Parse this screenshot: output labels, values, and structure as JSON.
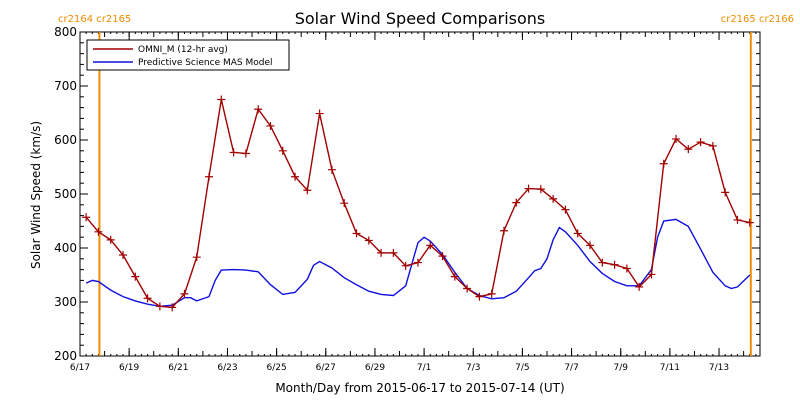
{
  "chart_data": {
    "type": "line",
    "title": "Solar Wind Speed Comparisons",
    "xlabel": "Month/Day from 2015-06-17 to 2015-07-14 (UT)",
    "ylabel": "Solar Wind Speed (km/s)",
    "ylim": [
      200,
      800
    ],
    "xlim": [
      "2015-06-17",
      "2015-07-14"
    ],
    "y_ticks": [
      200,
      300,
      400,
      500,
      600,
      700,
      800
    ],
    "x_ticks": [
      {
        "date": "2015-06-17",
        "label": "6/17"
      },
      {
        "date": "2015-06-19",
        "label": "6/19"
      },
      {
        "date": "2015-06-21",
        "label": "6/21"
      },
      {
        "date": "2015-06-23",
        "label": "6/23"
      },
      {
        "date": "2015-06-25",
        "label": "6/25"
      },
      {
        "date": "2015-06-27",
        "label": "6/27"
      },
      {
        "date": "2015-06-29",
        "label": "6/29"
      },
      {
        "date": "2015-07-01",
        "label": "7/1"
      },
      {
        "date": "2015-07-03",
        "label": "7/3"
      },
      {
        "date": "2015-07-05",
        "label": "7/5"
      },
      {
        "date": "2015-07-07",
        "label": "7/7"
      },
      {
        "date": "2015-07-09",
        "label": "7/9"
      },
      {
        "date": "2015-07-11",
        "label": "7/11"
      },
      {
        "date": "2015-07-13",
        "label": "7/13"
      }
    ],
    "carrington_markers": [
      {
        "date": "2015-06-17 19:00",
        "labels": [
          "cr2164",
          "cr2165"
        ],
        "side": "left"
      },
      {
        "date": "2015-07-14 07:00",
        "labels": [
          "cr2165",
          "cr2166"
        ],
        "side": "right"
      }
    ],
    "legend_position": "top-left",
    "series": [
      {
        "name": "OMNI_M (12-hr avg)",
        "color": "#a00000",
        "markers": "plus",
        "points": [
          [
            "2015-06-17 06:00",
            457
          ],
          [
            "2015-06-17 18:00",
            430
          ],
          [
            "2015-06-18 06:00",
            415
          ],
          [
            "2015-06-18 18:00",
            387
          ],
          [
            "2015-06-19 06:00",
            347
          ],
          [
            "2015-06-19 18:00",
            307
          ],
          [
            "2015-06-20 06:00",
            292
          ],
          [
            "2015-06-20 18:00",
            290
          ],
          [
            "2015-06-21 06:00",
            315
          ],
          [
            "2015-06-21 18:00",
            383
          ],
          [
            "2015-06-22 06:00",
            532
          ],
          [
            "2015-06-22 18:00",
            675
          ],
          [
            "2015-06-23 06:00",
            577
          ],
          [
            "2015-06-23 18:00",
            575
          ],
          [
            "2015-06-24 06:00",
            657
          ],
          [
            "2015-06-24 18:00",
            626
          ],
          [
            "2015-06-25 06:00",
            580
          ],
          [
            "2015-06-25 18:00",
            532
          ],
          [
            "2015-06-26 06:00",
            507
          ],
          [
            "2015-06-26 18:00",
            649
          ],
          [
            "2015-06-27 06:00",
            545
          ],
          [
            "2015-06-27 18:00",
            483
          ],
          [
            "2015-06-28 06:00",
            427
          ],
          [
            "2015-06-28 18:00",
            414
          ],
          [
            "2015-06-29 06:00",
            391
          ],
          [
            "2015-06-29 18:00",
            391
          ],
          [
            "2015-06-30 06:00",
            367
          ],
          [
            "2015-06-30 18:00",
            373
          ],
          [
            "2015-07-01 06:00",
            405
          ],
          [
            "2015-07-01 18:00",
            385
          ],
          [
            "2015-07-02 06:00",
            347
          ],
          [
            "2015-07-02 18:00",
            325
          ],
          [
            "2015-07-03 06:00",
            310
          ],
          [
            "2015-07-03 18:00",
            315
          ],
          [
            "2015-07-04 06:00",
            432
          ],
          [
            "2015-07-04 18:00",
            484
          ],
          [
            "2015-07-05 06:00",
            510
          ],
          [
            "2015-07-05 18:00",
            509
          ],
          [
            "2015-07-06 06:00",
            491
          ],
          [
            "2015-07-06 18:00",
            471
          ],
          [
            "2015-07-07 06:00",
            427
          ],
          [
            "2015-07-07 18:00",
            405
          ],
          [
            "2015-07-08 06:00",
            373
          ],
          [
            "2015-07-08 18:00",
            369
          ],
          [
            "2015-07-09 06:00",
            362
          ],
          [
            "2015-07-09 18:00",
            328
          ],
          [
            "2015-07-10 06:00",
            351
          ],
          [
            "2015-07-10 18:00",
            556
          ],
          [
            "2015-07-11 06:00",
            602
          ],
          [
            "2015-07-11 18:00",
            583
          ],
          [
            "2015-07-12 06:00",
            596
          ],
          [
            "2015-07-12 18:00",
            589
          ],
          [
            "2015-07-13 06:00",
            503
          ],
          [
            "2015-07-13 18:00",
            452
          ],
          [
            "2015-07-14 06:00",
            447
          ]
        ]
      },
      {
        "name": "Predictive Science MAS Model",
        "color": "#1010e0",
        "markers": "none",
        "points": [
          [
            "2015-06-17 06:00",
            335
          ],
          [
            "2015-06-17 12:00",
            340
          ],
          [
            "2015-06-17 18:00",
            338
          ],
          [
            "2015-06-18 06:00",
            322
          ],
          [
            "2015-06-18 18:00",
            310
          ],
          [
            "2015-06-19 06:00",
            302
          ],
          [
            "2015-06-19 18:00",
            296
          ],
          [
            "2015-06-20 06:00",
            292
          ],
          [
            "2015-06-20 18:00",
            294
          ],
          [
            "2015-06-21 06:00",
            308
          ],
          [
            "2015-06-21 12:00",
            308
          ],
          [
            "2015-06-21 18:00",
            302
          ],
          [
            "2015-06-22 06:00",
            310
          ],
          [
            "2015-06-22 12:00",
            340
          ],
          [
            "2015-06-22 18:00",
            359
          ],
          [
            "2015-06-23 06:00",
            360
          ],
          [
            "2015-06-23 18:00",
            359
          ],
          [
            "2015-06-24 06:00",
            356
          ],
          [
            "2015-06-24 18:00",
            332
          ],
          [
            "2015-06-25 06:00",
            314
          ],
          [
            "2015-06-25 18:00",
            318
          ],
          [
            "2015-06-26 06:00",
            342
          ],
          [
            "2015-06-26 12:00",
            368
          ],
          [
            "2015-06-26 18:00",
            375
          ],
          [
            "2015-06-27 06:00",
            363
          ],
          [
            "2015-06-27 18:00",
            345
          ],
          [
            "2015-06-28 06:00",
            332
          ],
          [
            "2015-06-28 18:00",
            320
          ],
          [
            "2015-06-29 06:00",
            314
          ],
          [
            "2015-06-29 18:00",
            312
          ],
          [
            "2015-06-30 06:00",
            330
          ],
          [
            "2015-06-30 12:00",
            370
          ],
          [
            "2015-06-30 18:00",
            410
          ],
          [
            "2015-07-01 00:00",
            420
          ],
          [
            "2015-07-01 06:00",
            413
          ],
          [
            "2015-07-01 18:00",
            388
          ],
          [
            "2015-07-02 06:00",
            355
          ],
          [
            "2015-07-02 18:00",
            325
          ],
          [
            "2015-07-03 06:00",
            312
          ],
          [
            "2015-07-03 18:00",
            306
          ],
          [
            "2015-07-04 06:00",
            308
          ],
          [
            "2015-07-04 18:00",
            320
          ],
          [
            "2015-07-05 06:00",
            345
          ],
          [
            "2015-07-05 12:00",
            358
          ],
          [
            "2015-07-05 18:00",
            362
          ],
          [
            "2015-07-06 00:00",
            380
          ],
          [
            "2015-07-06 06:00",
            415
          ],
          [
            "2015-07-06 12:00",
            438
          ],
          [
            "2015-07-06 18:00",
            430
          ],
          [
            "2015-07-07 06:00",
            405
          ],
          [
            "2015-07-07 18:00",
            375
          ],
          [
            "2015-07-08 06:00",
            353
          ],
          [
            "2015-07-08 18:00",
            338
          ],
          [
            "2015-07-09 06:00",
            330
          ],
          [
            "2015-07-09 18:00",
            330
          ],
          [
            "2015-07-10 06:00",
            360
          ],
          [
            "2015-07-10 12:00",
            420
          ],
          [
            "2015-07-10 18:00",
            450
          ],
          [
            "2015-07-11 06:00",
            453
          ],
          [
            "2015-07-11 18:00",
            440
          ],
          [
            "2015-07-12 06:00",
            398
          ],
          [
            "2015-07-12 18:00",
            355
          ],
          [
            "2015-07-13 06:00",
            330
          ],
          [
            "2015-07-13 12:00",
            325
          ],
          [
            "2015-07-13 18:00",
            328
          ],
          [
            "2015-07-14 06:00",
            350
          ]
        ]
      }
    ]
  }
}
